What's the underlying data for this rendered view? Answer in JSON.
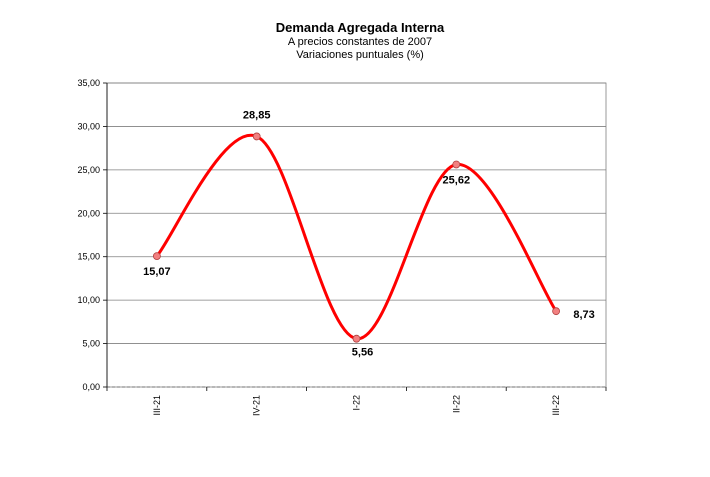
{
  "chart_data": {
    "type": "line",
    "title": "Demanda Agregada Interna",
    "subtitle": "A precios constantes de 2007",
    "subtitle2": "Variaciones puntuales (%)",
    "categories": [
      "III-21",
      "IV-21",
      "I-22",
      "II-22",
      "III-22"
    ],
    "series": [
      {
        "values": [
          15.07,
          28.85,
          5.56,
          25.62,
          8.73
        ]
      }
    ],
    "data_labels": [
      "15,07",
      "28,85",
      "5,56",
      "25,62",
      "8,73"
    ],
    "yticks": [
      "0,00",
      "5,00",
      "10,00",
      "15,00",
      "20,00",
      "25,00",
      "30,00",
      "35,00"
    ],
    "ylim": [
      0,
      35
    ],
    "grid": true,
    "smooth": true,
    "line_color": "#ff0000",
    "marker_color": "#f28080"
  }
}
